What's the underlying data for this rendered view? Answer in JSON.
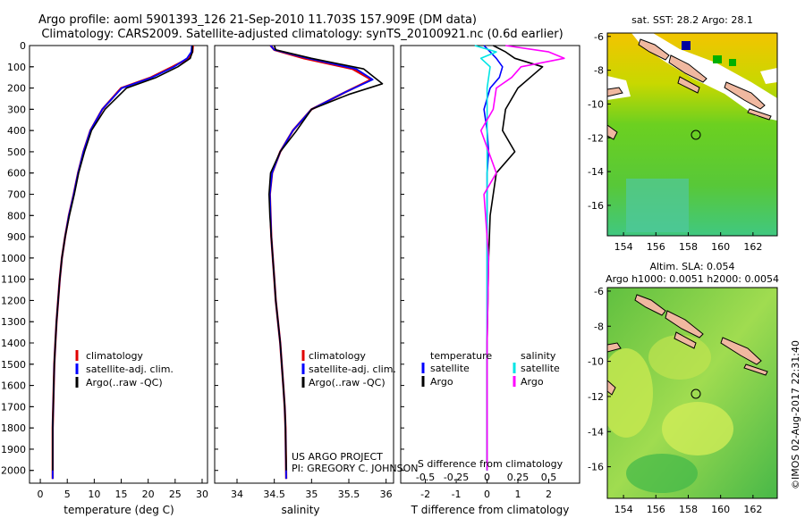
{
  "header": {
    "line1": "Argo profile: aoml 5901393_126 21-Sep-2010 11.703S 157.909E (DM data)",
    "line2": "Climatology: CARS2009. Satellite-adjusted climatology: synTS_20100921.nc (0.6d earlier)"
  },
  "depth_axis": {
    "ticks": [
      "0",
      "100",
      "200",
      "300",
      "400",
      "500",
      "600",
      "700",
      "800",
      "900",
      "1000",
      "1100",
      "1200",
      "1300",
      "1400",
      "1500",
      "1600",
      "1700",
      "1800",
      "1900",
      "2000"
    ]
  },
  "colors": {
    "climatology": "#e00000",
    "satellite": "#0000ff",
    "argo": "#000000",
    "s_satellite": "#00e5e5",
    "s_argo": "#ff00ff"
  },
  "chart_data": [
    {
      "type": "line",
      "title": "",
      "xlabel": "temperature (deg C)",
      "ylabel": "",
      "xlim": [
        -2,
        31
      ],
      "ylim": [
        2060,
        0
      ],
      "xticks": [
        0,
        5,
        10,
        15,
        20,
        25,
        30
      ],
      "legend": [
        "climatology",
        "satellite-adj. clim.",
        "Argo(..raw -QC)"
      ],
      "series": [
        {
          "name": "climatology",
          "x": [
            28.3,
            28.2,
            27.5,
            24.5,
            20.5,
            15.0,
            11.5,
            9.3,
            8.0,
            7.0,
            6.2,
            5.3,
            4.6,
            4.0,
            3.6,
            3.3,
            3.0,
            2.8,
            2.6,
            2.5,
            2.4,
            2.3,
            2.3
          ],
          "depth": [
            0,
            30,
            60,
            100,
            150,
            200,
            300,
            400,
            500,
            600,
            700,
            800,
            900,
            1000,
            1100,
            1200,
            1300,
            1400,
            1500,
            1600,
            1700,
            1800,
            2040
          ]
        },
        {
          "name": "satellite-adj. clim.",
          "x": [
            28.1,
            28.0,
            27.2,
            24.8,
            20.7,
            15.1,
            11.5,
            9.3,
            8.0,
            7.0,
            6.2,
            5.3,
            4.6,
            4.0,
            3.6,
            3.3,
            3.0,
            2.8,
            2.6,
            2.5,
            2.4,
            2.3,
            2.3
          ],
          "depth": [
            0,
            30,
            60,
            100,
            150,
            200,
            300,
            400,
            500,
            600,
            700,
            800,
            900,
            1000,
            1100,
            1200,
            1300,
            1400,
            1500,
            1600,
            1700,
            1800,
            2040
          ]
        },
        {
          "name": "Argo(..raw -QC)",
          "x": [
            28.2,
            28.2,
            27.8,
            25.5,
            21.5,
            16.0,
            12.0,
            9.5,
            8.2,
            7.1,
            6.3,
            5.4,
            4.6,
            4.0,
            3.6,
            3.3,
            3.0,
            2.8,
            2.6,
            2.5,
            2.4,
            2.3,
            2.3
          ],
          "depth": [
            0,
            30,
            60,
            100,
            150,
            200,
            300,
            400,
            500,
            600,
            700,
            800,
            900,
            1000,
            1100,
            1200,
            1300,
            1400,
            1500,
            1600,
            1700,
            1800,
            2000
          ]
        }
      ]
    },
    {
      "type": "line",
      "title": "",
      "xlabel": "salinity",
      "ylabel": "",
      "xlim": [
        33.7,
        36.1
      ],
      "ylim": [
        2060,
        0
      ],
      "xticks": [
        34,
        34.5,
        35,
        35.5,
        36
      ],
      "tick_labels": [
        "34",
        "34.5",
        "35",
        "35.5",
        "36"
      ],
      "legend": [
        "climatology",
        "satellite-adj. clim.",
        "Argo(..raw -QC)"
      ],
      "annotation": [
        "US ARGO PROJECT",
        "PI: GREGORY C. JOHNSON"
      ],
      "series": [
        {
          "name": "climatology",
          "x": [
            34.45,
            34.5,
            34.9,
            35.55,
            35.8,
            35.45,
            35.0,
            34.75,
            34.58,
            34.47,
            34.44,
            34.45,
            34.46,
            34.48,
            34.5,
            34.52,
            34.55,
            34.58,
            34.6,
            34.62,
            34.64,
            34.65,
            34.66
          ],
          "depth": [
            0,
            20,
            60,
            110,
            160,
            220,
            300,
            400,
            500,
            600,
            700,
            800,
            900,
            1000,
            1100,
            1200,
            1300,
            1400,
            1500,
            1600,
            1700,
            1800,
            2040
          ]
        },
        {
          "name": "satellite-adj. clim.",
          "x": [
            34.45,
            34.5,
            34.95,
            35.6,
            35.82,
            35.45,
            35.0,
            34.75,
            34.58,
            34.47,
            34.44,
            34.45,
            34.46,
            34.48,
            34.5,
            34.52,
            34.55,
            34.58,
            34.6,
            34.62,
            34.64,
            34.65,
            34.66
          ],
          "depth": [
            0,
            20,
            60,
            110,
            160,
            220,
            300,
            400,
            500,
            600,
            700,
            800,
            900,
            1000,
            1100,
            1200,
            1300,
            1400,
            1500,
            1600,
            1700,
            1800,
            2040
          ]
        },
        {
          "name": "Argo(..raw -QC)",
          "x": [
            34.5,
            34.52,
            35.0,
            35.7,
            35.95,
            35.5,
            35.0,
            34.8,
            34.58,
            34.45,
            34.43,
            34.44,
            34.46,
            34.48,
            34.5,
            34.52,
            34.55,
            34.58,
            34.6,
            34.62,
            34.64,
            34.65,
            34.66
          ],
          "depth": [
            0,
            20,
            60,
            110,
            180,
            230,
            300,
            400,
            500,
            600,
            700,
            800,
            900,
            1000,
            1100,
            1200,
            1300,
            1400,
            1500,
            1600,
            1700,
            1800,
            2000
          ]
        }
      ]
    },
    {
      "type": "line",
      "title": "",
      "xlabel": "T difference from climatology",
      "xlabel_top": "S difference from climatology",
      "ylabel": "",
      "xlim": [
        -2.8,
        3.0
      ],
      "ylim": [
        2060,
        0
      ],
      "xticks": [
        -2,
        -1,
        0,
        1,
        2
      ],
      "xtick_labels": [
        "-2",
        "-1",
        "0",
        "1",
        "2"
      ],
      "s_xticks": [
        -2,
        -1,
        0,
        1,
        2
      ],
      "s_xtick_labels": [
        "-0.5",
        "-0.25",
        "0",
        "0.25",
        "0.5"
      ],
      "legend_temperature": {
        "heading": "temperature",
        "items": [
          "satellite",
          "Argo"
        ]
      },
      "legend_salinity": {
        "heading": "salinity",
        "items": [
          "satellite",
          "Argo"
        ]
      },
      "series": [
        {
          "name": "T satellite",
          "x": [
            -0.1,
            0.1,
            0.3,
            0.5,
            0.4,
            0.1,
            -0.1,
            0.0,
            0.05,
            0.0,
            0.0,
            0.0,
            0.0,
            0.0,
            0.0
          ],
          "depth": [
            0,
            30,
            60,
            100,
            150,
            200,
            300,
            400,
            500,
            600,
            800,
            1000,
            1400,
            1800,
            2000
          ]
        },
        {
          "name": "T Argo",
          "x": [
            0.2,
            0.6,
            0.9,
            1.8,
            1.4,
            1.0,
            0.6,
            0.5,
            0.9,
            0.3,
            0.1,
            0.05,
            0.0,
            0.0,
            0.0
          ],
          "depth": [
            0,
            30,
            60,
            100,
            150,
            200,
            300,
            400,
            500,
            600,
            800,
            1000,
            1400,
            1800,
            2000
          ]
        },
        {
          "name": "S satellite",
          "x": [
            -0.4,
            0.3,
            -0.2,
            0.1,
            0.0,
            0.0,
            0.0,
            0.0,
            0.0,
            0.0,
            0.0
          ],
          "depth": [
            0,
            30,
            60,
            100,
            200,
            300,
            400,
            600,
            1000,
            1400,
            2000
          ]
        },
        {
          "name": "S Argo",
          "x": [
            0.6,
            2.0,
            2.5,
            1.1,
            0.8,
            0.3,
            0.2,
            -0.2,
            0.3,
            -0.1,
            0.05,
            0.0,
            0.0
          ],
          "depth": [
            0,
            30,
            60,
            100,
            150,
            200,
            300,
            400,
            600,
            700,
            1000,
            1400,
            2000
          ]
        }
      ]
    },
    {
      "type": "heatmap",
      "title": "sat. SST: 28.2 Argo: 28.1",
      "xlim": [
        153,
        163.5
      ],
      "ylim": [
        -17.8,
        -5.8
      ],
      "xticks": [
        "154",
        "156",
        "158",
        "160",
        "162"
      ],
      "yticks": [
        "-6",
        "-8",
        "-10",
        "-12",
        "-14",
        "-16"
      ],
      "argo_position": [
        157.909,
        -11.703
      ]
    },
    {
      "type": "heatmap",
      "title": "Altim. SLA: 0.054",
      "subtitle": "Argo h1000: 0.0051 h2000: 0.0054",
      "xlim": [
        153,
        163.5
      ],
      "ylim": [
        -17.8,
        -5.8
      ],
      "xticks": [
        "154",
        "156",
        "158",
        "160",
        "162"
      ],
      "yticks": [
        "-6",
        "-8",
        "-10",
        "-12",
        "-14",
        "-16"
      ],
      "argo_position": [
        157.909,
        -11.703
      ]
    }
  ],
  "footer": {
    "credit": "©IMOS 02-Aug-2017 22:31:40"
  }
}
